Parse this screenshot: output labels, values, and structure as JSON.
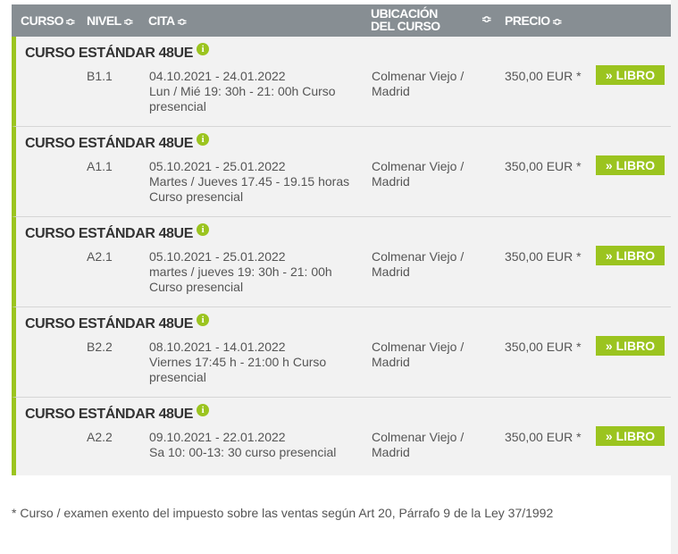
{
  "header": {
    "curso": "CURSO",
    "nivel": "NIVEL",
    "cita": "CITA",
    "ubicacion": "UBICACIÓN DEL CURSO",
    "precio": "PRECIO",
    "sort_icon": "⇕"
  },
  "accent": "#9bc41f",
  "rows": [
    {
      "title": "CURSO ESTÁNDAR 48UE",
      "level": "B1.1",
      "dates": "04.10.2021 - 24.01.2022",
      "schedule": "Lun / Mié 19: 30h - 21: 00h Curso presencial",
      "location": "Colmenar Viejo / Madrid",
      "price": "350,00 EUR *",
      "button": "LIBRO"
    },
    {
      "title": "CURSO ESTÁNDAR 48UE",
      "level": "A1.1",
      "dates": "05.10.2021 - 25.01.2022",
      "schedule": "Martes / Jueves 17.45 - 19.15 horas Curso presencial",
      "location": "Colmenar Viejo / Madrid",
      "price": "350,00 EUR *",
      "button": "LIBRO"
    },
    {
      "title": "CURSO ESTÁNDAR 48UE",
      "level": "A2.1",
      "dates": "05.10.2021 - 25.01.2022",
      "schedule": "martes / jueves 19: 30h - 21: 00h Curso presencial",
      "location": "Colmenar Viejo / Madrid",
      "price": "350,00 EUR *",
      "button": "LIBRO"
    },
    {
      "title": "CURSO ESTÁNDAR 48UE",
      "level": "B2.2",
      "dates": "08.10.2021 - 14.01.2022",
      "schedule": "Viernes 17:45 h - 21:00 h Curso presencial",
      "location": "Colmenar Viejo / Madrid",
      "price": "350,00 EUR *",
      "button": "LIBRO"
    },
    {
      "title": "CURSO ESTÁNDAR 48UE",
      "level": "A2.2",
      "dates": "09.10.2021 - 22.01.2022",
      "schedule": "Sa 10: 00-13: 30 curso presencial",
      "location": "Colmenar Viejo / Madrid",
      "price": "350,00 EUR *",
      "button": "LIBRO"
    }
  ],
  "footnote": "* Curso / examen exento del impuesto sobre las ventas según Art 20, Párrafo 9 de la Ley 37/1992"
}
